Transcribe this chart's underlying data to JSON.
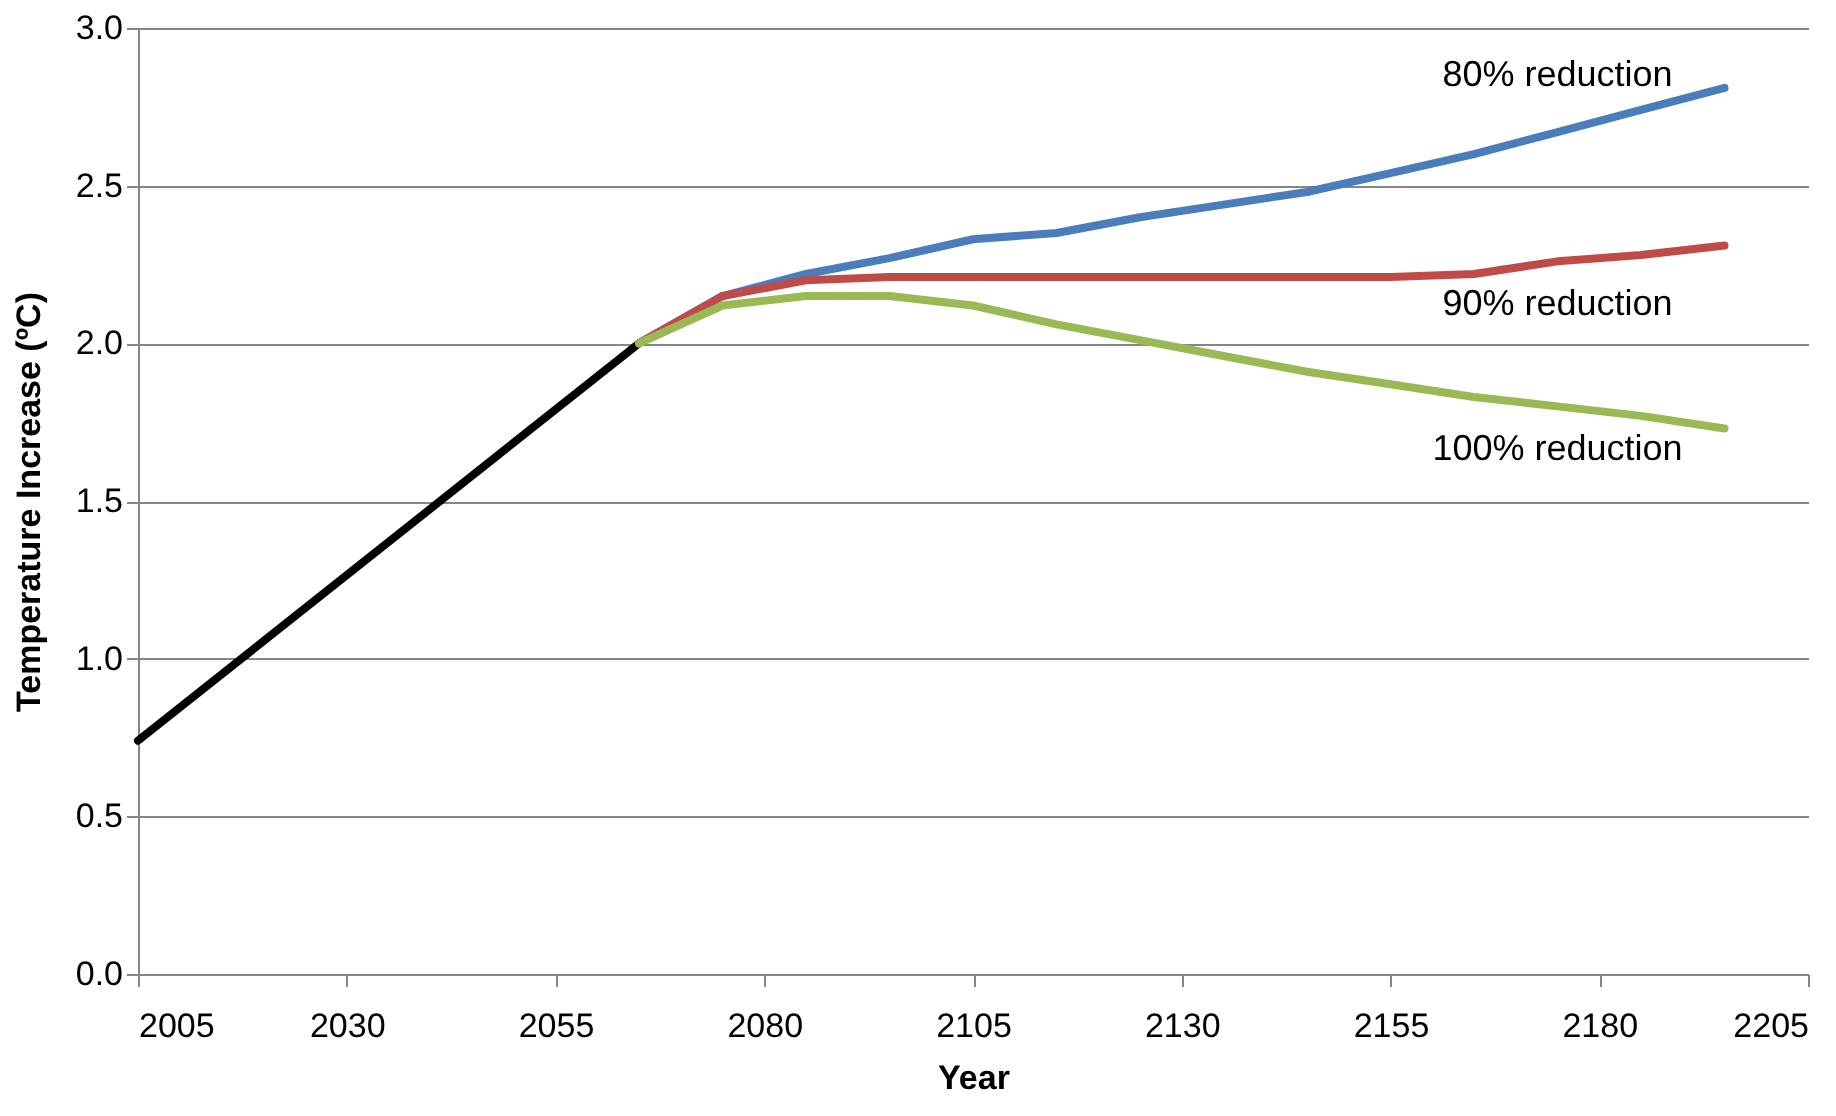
{
  "chart_data": {
    "type": "line",
    "xlabel": "Year",
    "ylabel": "Temperature Increase (ºC)",
    "xlim": [
      2005,
      2205
    ],
    "xticks": [
      2005,
      2030,
      2055,
      2080,
      2105,
      2130,
      2155,
      2180,
      2205
    ],
    "ylim": [
      0,
      3
    ],
    "yticks": [
      {
        "value": 0,
        "label": "0.0"
      },
      {
        "value": 0.5,
        "label": "0.5"
      },
      {
        "value": 1,
        "label": "1.0"
      },
      {
        "value": 1.5,
        "label": "1.5"
      },
      {
        "value": 2,
        "label": "2.0"
      },
      {
        "value": 2.5,
        "label": "2.5"
      },
      {
        "value": 3,
        "label": "3.0"
      }
    ],
    "grid": "y",
    "marker": "none",
    "line_style": "solid",
    "series": [
      {
        "color": "#000000",
        "x": [
          2005,
          2065
        ],
        "values": [
          0.74,
          2.0
        ]
      },
      {
        "name": "80% reduction",
        "color": "#4a7ebb",
        "x": [
          2065,
          2075,
          2085,
          2095,
          2105,
          2115,
          2125,
          2135,
          2145,
          2155,
          2165,
          2175,
          2185,
          2195
        ],
        "values": [
          2.0,
          2.15,
          2.22,
          2.27,
          2.33,
          2.35,
          2.4,
          2.44,
          2.48,
          2.54,
          2.6,
          2.67,
          2.74,
          2.81
        ]
      },
      {
        "name": "90% reduction",
        "color": "#be4b48",
        "x": [
          2065,
          2075,
          2085,
          2095,
          2105,
          2115,
          2125,
          2135,
          2145,
          2155,
          2165,
          2175,
          2185,
          2195
        ],
        "values": [
          2.0,
          2.15,
          2.2,
          2.21,
          2.21,
          2.21,
          2.21,
          2.21,
          2.21,
          2.21,
          2.22,
          2.26,
          2.28,
          2.31
        ]
      },
      {
        "name": "100% reduction",
        "color": "#98b954",
        "x": [
          2065,
          2075,
          2085,
          2095,
          2105,
          2115,
          2125,
          2135,
          2145,
          2155,
          2165,
          2175,
          2185,
          2195
        ],
        "values": [
          2.0,
          2.12,
          2.15,
          2.15,
          2.12,
          2.06,
          2.01,
          1.96,
          1.91,
          1.87,
          1.83,
          1.8,
          1.77,
          1.73
        ]
      }
    ]
  }
}
